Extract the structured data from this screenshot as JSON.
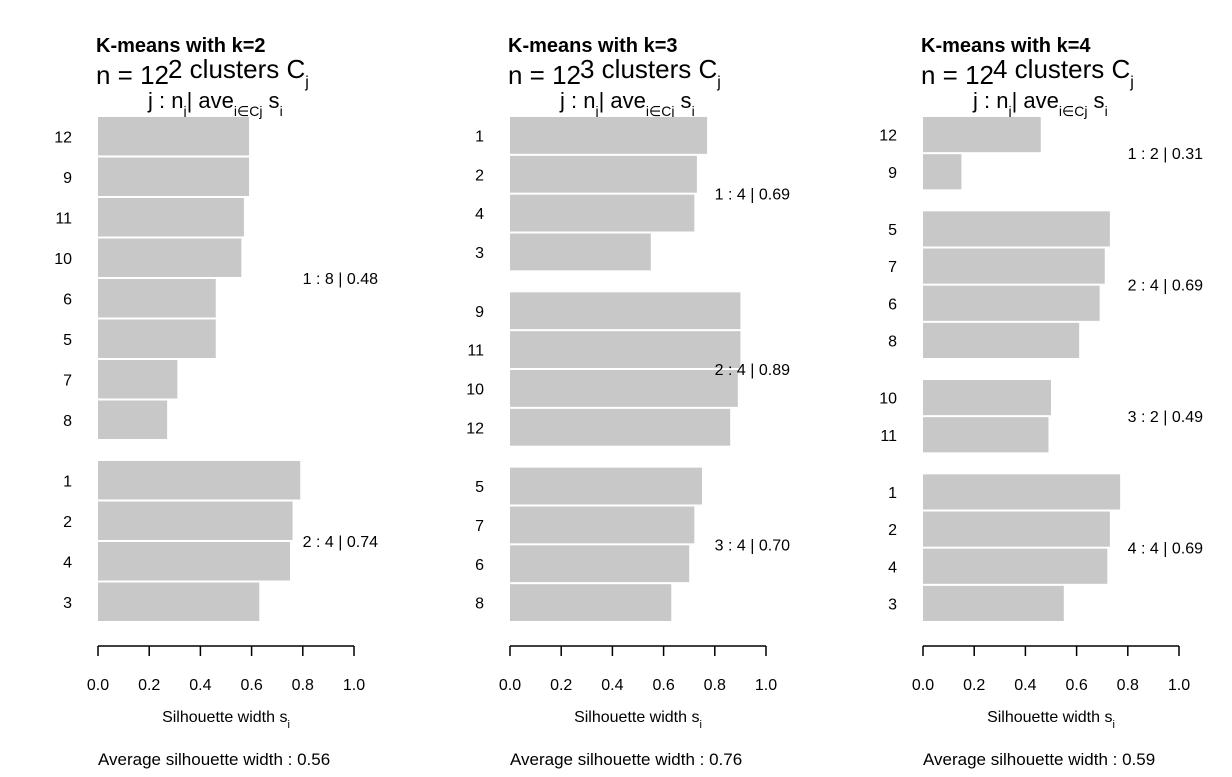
{
  "chart_data": [
    {
      "type": "bar",
      "orientation": "horizontal",
      "title": "K-means with k=2",
      "n_text": "n = 12",
      "k_text": "2",
      "clusters_word": "clusters",
      "cluster_symbol": "C",
      "cluster_subscript": "j",
      "header_j": "j :",
      "header_n": "n",
      "header_n_sub": "j",
      "header_ave": "| ave",
      "header_ave_sub": "i∈Cj",
      "header_s": "s",
      "header_s_sub": "i",
      "xlabel": "Silhouette width s",
      "xlabel_sub": "i",
      "xlim": [
        0,
        1
      ],
      "xticks": [
        "0.0",
        "0.2",
        "0.4",
        "0.6",
        "0.8",
        "1.0"
      ],
      "avg_label": "Average silhouette width :",
      "avg_value": "0.56",
      "bar_color": "#c8c8c8",
      "clusters": [
        {
          "summary": "1 :  8  |  0.48",
          "items": [
            {
              "label": "12",
              "value": 0.59
            },
            {
              "label": "9",
              "value": 0.59
            },
            {
              "label": "11",
              "value": 0.57
            },
            {
              "label": "10",
              "value": 0.56
            },
            {
              "label": "6",
              "value": 0.46
            },
            {
              "label": "5",
              "value": 0.46
            },
            {
              "label": "7",
              "value": 0.31
            },
            {
              "label": "8",
              "value": 0.27
            }
          ]
        },
        {
          "summary": "2 :  4  |  0.74",
          "items": [
            {
              "label": "1",
              "value": 0.79
            },
            {
              "label": "2",
              "value": 0.76
            },
            {
              "label": "4",
              "value": 0.75
            },
            {
              "label": "3",
              "value": 0.63
            }
          ]
        }
      ]
    },
    {
      "type": "bar",
      "orientation": "horizontal",
      "title": "K-means with k=3",
      "n_text": "n = 12",
      "k_text": "3",
      "clusters_word": "clusters",
      "cluster_symbol": "C",
      "cluster_subscript": "j",
      "header_j": "j :",
      "header_n": "n",
      "header_n_sub": "j",
      "header_ave": "| ave",
      "header_ave_sub": "i∈Cj",
      "header_s": "s",
      "header_s_sub": "i",
      "xlabel": "Silhouette width s",
      "xlabel_sub": "i",
      "xlim": [
        0,
        1
      ],
      "xticks": [
        "0.0",
        "0.2",
        "0.4",
        "0.6",
        "0.8",
        "1.0"
      ],
      "avg_label": "Average silhouette width :",
      "avg_value": "0.76",
      "bar_color": "#c8c8c8",
      "clusters": [
        {
          "summary": "1 :  4  |  0.69",
          "items": [
            {
              "label": "1",
              "value": 0.77
            },
            {
              "label": "2",
              "value": 0.73
            },
            {
              "label": "4",
              "value": 0.72
            },
            {
              "label": "3",
              "value": 0.55
            }
          ]
        },
        {
          "summary": "2 :  4  |  0.89",
          "items": [
            {
              "label": "9",
              "value": 0.9
            },
            {
              "label": "11",
              "value": 0.9
            },
            {
              "label": "10",
              "value": 0.89
            },
            {
              "label": "12",
              "value": 0.86
            }
          ]
        },
        {
          "summary": "3 :  4  |  0.70",
          "items": [
            {
              "label": "5",
              "value": 0.75
            },
            {
              "label": "7",
              "value": 0.72
            },
            {
              "label": "6",
              "value": 0.7
            },
            {
              "label": "8",
              "value": 0.63
            }
          ]
        }
      ]
    },
    {
      "type": "bar",
      "orientation": "horizontal",
      "title": "K-means with k=4",
      "n_text": "n = 12",
      "k_text": "4",
      "clusters_word": "clusters",
      "cluster_symbol": "C",
      "cluster_subscript": "j",
      "header_j": "j :",
      "header_n": "n",
      "header_n_sub": "j",
      "header_ave": "| ave",
      "header_ave_sub": "i∈Cj",
      "header_s": "s",
      "header_s_sub": "i",
      "xlabel": "Silhouette width s",
      "xlabel_sub": "i",
      "xlim": [
        0,
        1
      ],
      "xticks": [
        "0.0",
        "0.2",
        "0.4",
        "0.6",
        "0.8",
        "1.0"
      ],
      "avg_label": "Average silhouette width :",
      "avg_value": "0.59",
      "bar_color": "#c8c8c8",
      "clusters": [
        {
          "summary": "1 :  2  |  0.31",
          "items": [
            {
              "label": "12",
              "value": 0.46
            },
            {
              "label": "9",
              "value": 0.15
            }
          ]
        },
        {
          "summary": "2 :  4  |  0.69",
          "items": [
            {
              "label": "5",
              "value": 0.73
            },
            {
              "label": "7",
              "value": 0.71
            },
            {
              "label": "6",
              "value": 0.69
            },
            {
              "label": "8",
              "value": 0.61
            }
          ]
        },
        {
          "summary": "3 :  2  |  0.49",
          "items": [
            {
              "label": "10",
              "value": 0.5
            },
            {
              "label": "11",
              "value": 0.49
            }
          ]
        },
        {
          "summary": "4 :  4  |  0.69",
          "items": [
            {
              "label": "1",
              "value": 0.77
            },
            {
              "label": "2",
              "value": 0.73
            },
            {
              "label": "4",
              "value": 0.72
            },
            {
              "label": "3",
              "value": 0.55
            }
          ]
        }
      ]
    }
  ]
}
